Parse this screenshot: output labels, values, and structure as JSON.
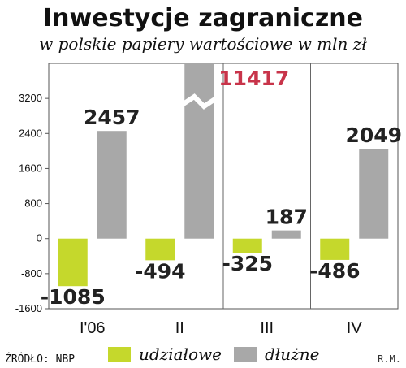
{
  "chart_data": {
    "type": "bar",
    "title": "Inwestycje zagraniczne",
    "subtitle": "w polskie papiery wartościowe w mln zł",
    "categories": [
      "I'06",
      "II",
      "III",
      "IV"
    ],
    "series": [
      {
        "name": "udziałowe",
        "color": "#c5d82c",
        "values": [
          -1085,
          -494,
          -325,
          -486
        ]
      },
      {
        "name": "dłużne",
        "color": "#a8a8a8",
        "values": [
          2457,
          11417,
          187,
          2049
        ]
      }
    ],
    "y_ticks": [
      3200,
      2400,
      1600,
      800,
      0,
      -800,
      -1600
    ],
    "ylim": [
      -1600,
      4000
    ],
    "axis_break": {
      "category_index": 1,
      "series_index": 1
    },
    "highlight_color": "#c8344a",
    "grid": "vertical-separators",
    "legend_position": "bottom"
  },
  "footer": {
    "source": "ŹRÓDŁO: NBP",
    "credit": "R.M."
  }
}
